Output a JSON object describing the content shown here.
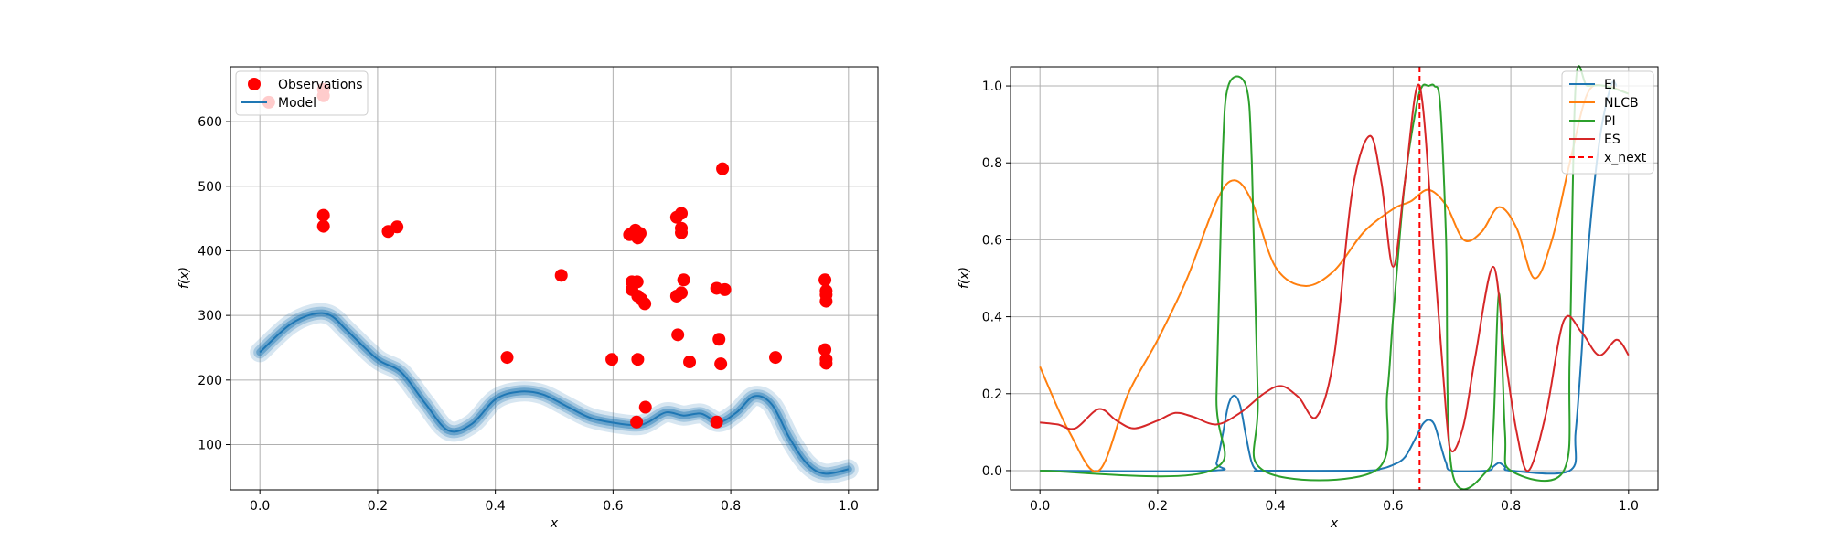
{
  "colors": {
    "observations": "#ff0000",
    "model": "#1f77b4",
    "EI": "#1f77b4",
    "NLCB": "#ff7f0e",
    "PI": "#2ca02c",
    "ES": "#d62728",
    "x_next": "#ff0000",
    "grid": "#b0b0b0"
  },
  "chart_data": [
    {
      "type": "scatter",
      "xlabel": "x",
      "ylabel": "f(x)",
      "xlim": [
        -0.05,
        1.05
      ],
      "ylim": [
        30,
        685
      ],
      "xticks": [
        0.0,
        0.2,
        0.4,
        0.6,
        0.8,
        1.0
      ],
      "xtick_labels": [
        "0.0",
        "0.2",
        "0.4",
        "0.6",
        "0.8",
        "1.0"
      ],
      "yticks": [
        100,
        200,
        300,
        400,
        500,
        600
      ],
      "ytick_labels": [
        "100",
        "200",
        "300",
        "400",
        "500",
        "600"
      ],
      "grid": true,
      "legend_position": "upper-left",
      "legend": [
        "Observations",
        "Model"
      ],
      "series": [
        {
          "name": "Observations",
          "type": "scatter",
          "points": [
            [
              0.015,
              630
            ],
            [
              0.108,
              640
            ],
            [
              0.108,
              650
            ],
            [
              0.108,
              455
            ],
            [
              0.108,
              438
            ],
            [
              0.218,
              430
            ],
            [
              0.233,
              437
            ],
            [
              0.42,
              235
            ],
            [
              0.512,
              362
            ],
            [
              0.598,
              232
            ],
            [
              0.628,
              425
            ],
            [
              0.638,
              432
            ],
            [
              0.642,
              420
            ],
            [
              0.646,
              427
            ],
            [
              0.632,
              352
            ],
            [
              0.641,
              352
            ],
            [
              0.632,
              340
            ],
            [
              0.642,
              330
            ],
            [
              0.648,
              325
            ],
            [
              0.654,
              318
            ],
            [
              0.642,
              232
            ],
            [
              0.655,
              158
            ],
            [
              0.64,
              135
            ],
            [
              0.708,
              452
            ],
            [
              0.716,
              458
            ],
            [
              0.716,
              435
            ],
            [
              0.716,
              428
            ],
            [
              0.708,
              330
            ],
            [
              0.716,
              335
            ],
            [
              0.72,
              355
            ],
            [
              0.71,
              270
            ],
            [
              0.73,
              228
            ],
            [
              0.776,
              342
            ],
            [
              0.79,
              340
            ],
            [
              0.786,
              527
            ],
            [
              0.78,
              263
            ],
            [
              0.783,
              225
            ],
            [
              0.776,
              135
            ],
            [
              0.876,
              235
            ],
            [
              0.96,
              355
            ],
            [
              0.962,
              338
            ],
            [
              0.962,
              332
            ],
            [
              0.962,
              322
            ],
            [
              0.96,
              247
            ],
            [
              0.962,
              232
            ],
            [
              0.962,
              226
            ]
          ]
        },
        {
          "name": "Model",
          "type": "line",
          "band": true,
          "x": [
            0.0,
            0.05,
            0.09,
            0.12,
            0.15,
            0.2,
            0.24,
            0.28,
            0.32,
            0.36,
            0.4,
            0.44,
            0.48,
            0.52,
            0.56,
            0.6,
            0.64,
            0.66,
            0.69,
            0.72,
            0.75,
            0.78,
            0.81,
            0.84,
            0.87,
            0.9,
            0.93,
            0.96,
            1.0
          ],
          "y": [
            243,
            285,
            302,
            300,
            275,
            232,
            212,
            165,
            122,
            132,
            170,
            182,
            178,
            160,
            142,
            134,
            130,
            135,
            150,
            145,
            148,
            135,
            150,
            175,
            162,
            110,
            70,
            55,
            62
          ]
        }
      ]
    },
    {
      "type": "line",
      "xlabel": "x",
      "ylabel": "f(x)",
      "xlim": [
        -0.05,
        1.05
      ],
      "ylim": [
        -0.05,
        1.05
      ],
      "xticks": [
        0.0,
        0.2,
        0.4,
        0.6,
        0.8,
        1.0
      ],
      "xtick_labels": [
        "0.0",
        "0.2",
        "0.4",
        "0.6",
        "0.8",
        "1.0"
      ],
      "yticks": [
        0.0,
        0.2,
        0.4,
        0.6,
        0.8,
        1.0
      ],
      "ytick_labels": [
        "0.0",
        "0.2",
        "0.4",
        "0.6",
        "0.8",
        "1.0"
      ],
      "grid": true,
      "legend_position": "upper-right",
      "legend": [
        "EI",
        "NLCB",
        "PI",
        "ES",
        "x_next"
      ],
      "x_next": 0.645,
      "series": [
        {
          "name": "EI",
          "x": [
            0.0,
            0.29,
            0.3,
            0.31,
            0.32,
            0.33,
            0.34,
            0.35,
            0.36,
            0.37,
            0.38,
            0.55,
            0.58,
            0.6,
            0.62,
            0.64,
            0.65,
            0.66,
            0.67,
            0.68,
            0.69,
            0.7,
            0.76,
            0.77,
            0.78,
            0.79,
            0.8,
            0.9,
            0.91,
            0.92,
            0.93,
            0.95,
            0.97,
            0.98
          ],
          "y": [
            0.0,
            0.0,
            0.02,
            0.09,
            0.17,
            0.195,
            0.17,
            0.09,
            0.02,
            0.0,
            0.0,
            0.0,
            0.005,
            0.015,
            0.035,
            0.09,
            0.12,
            0.132,
            0.12,
            0.07,
            0.02,
            0.0,
            0.0,
            0.01,
            0.02,
            0.01,
            0.0,
            0.0,
            0.1,
            0.3,
            0.55,
            0.85,
            1.0,
            1.0
          ]
        },
        {
          "name": "NLCB",
          "x": [
            0.0,
            0.05,
            0.1,
            0.15,
            0.2,
            0.25,
            0.3,
            0.33,
            0.36,
            0.4,
            0.45,
            0.5,
            0.55,
            0.6,
            0.63,
            0.66,
            0.69,
            0.72,
            0.75,
            0.78,
            0.81,
            0.84,
            0.87,
            0.9,
            0.93,
            0.96,
            1.0
          ],
          "y": [
            0.27,
            0.1,
            0.0,
            0.2,
            0.34,
            0.5,
            0.7,
            0.755,
            0.7,
            0.53,
            0.48,
            0.52,
            0.62,
            0.68,
            0.7,
            0.73,
            0.69,
            0.6,
            0.62,
            0.685,
            0.63,
            0.5,
            0.6,
            0.8,
            0.98,
            1.0,
            0.98
          ]
        },
        {
          "name": "PI",
          "x": [
            0.0,
            0.29,
            0.3,
            0.31,
            0.32,
            0.35,
            0.36,
            0.37,
            0.38,
            0.57,
            0.59,
            0.6,
            0.62,
            0.64,
            0.65,
            0.66,
            0.67,
            0.68,
            0.69,
            0.7,
            0.76,
            0.77,
            0.78,
            0.79,
            0.8,
            0.89,
            0.9,
            0.91,
            0.93,
            0.96,
            1.0
          ],
          "y": [
            0.0,
            0.0,
            0.2,
            0.8,
            1.0,
            1.0,
            0.8,
            0.2,
            0.0,
            0.0,
            0.2,
            0.4,
            0.75,
            0.95,
            1.0,
            1.0,
            1.0,
            0.95,
            0.6,
            0.0,
            0.0,
            0.1,
            0.46,
            0.1,
            0.0,
            0.0,
            0.3,
            1.0,
            1.0,
            1.0,
            0.98
          ]
        },
        {
          "name": "ES",
          "x": [
            0.0,
            0.03,
            0.06,
            0.1,
            0.13,
            0.16,
            0.2,
            0.23,
            0.26,
            0.3,
            0.34,
            0.38,
            0.41,
            0.44,
            0.47,
            0.5,
            0.53,
            0.56,
            0.58,
            0.6,
            0.62,
            0.645,
            0.67,
            0.69,
            0.7,
            0.72,
            0.74,
            0.77,
            0.79,
            0.81,
            0.83,
            0.86,
            0.89,
            0.92,
            0.95,
            0.98,
            1.0
          ],
          "y": [
            0.125,
            0.12,
            0.11,
            0.16,
            0.13,
            0.11,
            0.13,
            0.15,
            0.14,
            0.12,
            0.15,
            0.2,
            0.22,
            0.19,
            0.14,
            0.3,
            0.72,
            0.87,
            0.75,
            0.53,
            0.75,
            1.0,
            0.55,
            0.15,
            0.05,
            0.12,
            0.3,
            0.53,
            0.3,
            0.1,
            0.0,
            0.15,
            0.39,
            0.36,
            0.3,
            0.34,
            0.3
          ]
        }
      ]
    }
  ],
  "left": {
    "ylabel": "f(x)",
    "xlabel": "x",
    "legend_obs": "Observations",
    "legend_model": "Model"
  },
  "right": {
    "ylabel": "f(x)",
    "xlabel": "x",
    "legend": [
      "EI",
      "NLCB",
      "PI",
      "ES",
      "x_next"
    ]
  }
}
